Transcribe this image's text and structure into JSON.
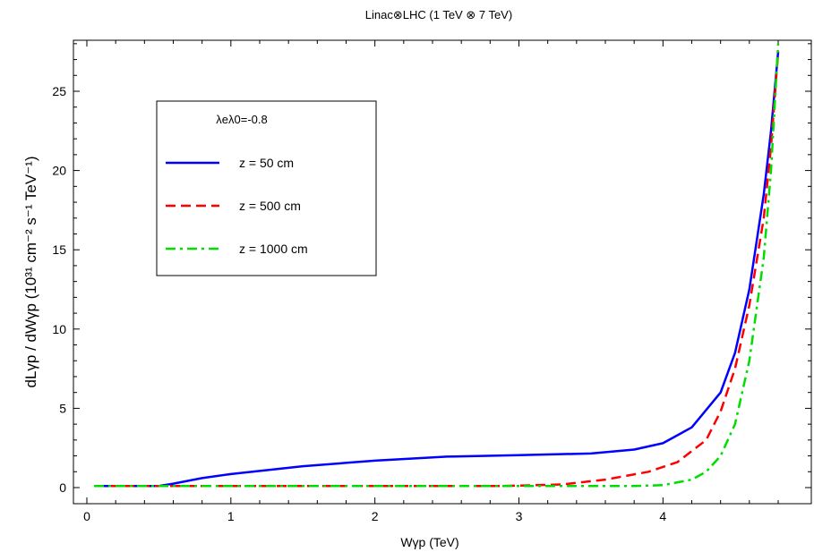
{
  "chart_data": {
    "type": "line",
    "title": "Linac⊗LHC  (1 TeV ⊗ 7 TeV)",
    "xlabel": "Wγp     (TeV)",
    "ylabel": "dLγp  / dWγp   (10³¹  cm⁻² s⁻¹ TeV⁻¹)",
    "xlim": [
      0,
      4.8
    ],
    "ylim": [
      -0.8,
      28.5
    ],
    "xticks": [
      0,
      1,
      2,
      3,
      4
    ],
    "yticks": [
      0,
      5,
      10,
      15,
      20,
      25
    ],
    "legend": {
      "header": "λeλ0=-0.8",
      "placement": "top-left"
    },
    "series": [
      {
        "name": "z  =  50  cm",
        "color": "#0000ff",
        "style": "solid",
        "x": [
          0.05,
          0.5,
          0.6,
          0.8,
          1.0,
          1.2,
          1.5,
          2.0,
          2.5,
          3.0,
          3.5,
          3.8,
          4.0,
          4.2,
          4.4,
          4.5,
          4.6,
          4.7,
          4.75,
          4.8
        ],
        "y": [
          0.1,
          0.1,
          0.25,
          0.6,
          0.85,
          1.05,
          1.35,
          1.7,
          1.95,
          2.05,
          2.15,
          2.4,
          2.8,
          3.8,
          6.0,
          8.5,
          12.5,
          18.5,
          22.5,
          27.5
        ]
      },
      {
        "name": "z  =  500  cm",
        "color": "#ff0000",
        "style": "dashed",
        "x": [
          0.05,
          0.5,
          1.0,
          2.0,
          2.9,
          3.3,
          3.6,
          3.9,
          4.1,
          4.3,
          4.4,
          4.5,
          4.6,
          4.7,
          4.75,
          4.8
        ],
        "y": [
          0.1,
          0.1,
          0.1,
          0.1,
          0.1,
          0.2,
          0.5,
          1.0,
          1.6,
          3.0,
          4.8,
          7.5,
          11.5,
          17.0,
          21.5,
          27.5
        ]
      },
      {
        "name": "z  =  1000  cm",
        "color": "#00dd00",
        "style": "dashdot",
        "x": [
          0.05,
          0.5,
          1.0,
          2.0,
          3.0,
          3.5,
          3.8,
          4.0,
          4.2,
          4.3,
          4.4,
          4.5,
          4.6,
          4.7,
          4.75,
          4.8
        ],
        "y": [
          0.1,
          0.1,
          0.1,
          0.1,
          0.1,
          0.1,
          0.1,
          0.15,
          0.5,
          1.0,
          2.0,
          4.0,
          8.0,
          14.5,
          20.0,
          28.0
        ]
      }
    ]
  }
}
